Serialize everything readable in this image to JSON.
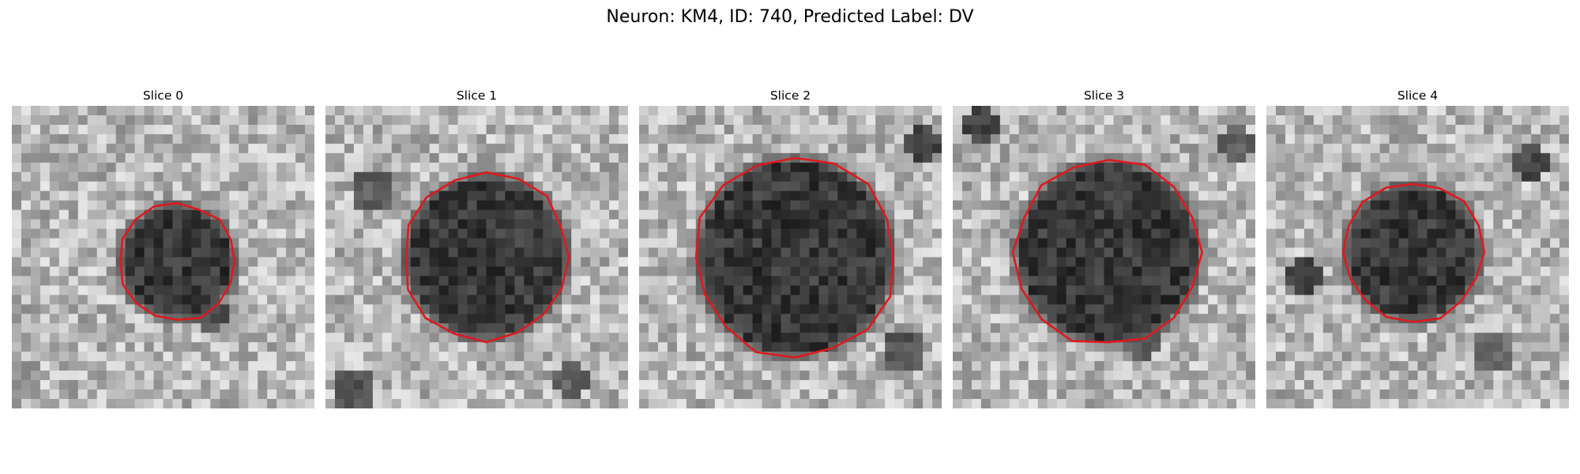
{
  "figure": {
    "title": "Neuron: KM4, ID: 740, Predicted Label: DV"
  },
  "colors": {
    "contour": "#e0191c",
    "background": "#ffffff"
  },
  "panels": [
    {
      "title": "Slice 0"
    },
    {
      "title": "Slice 1"
    },
    {
      "title": "Slice 2"
    },
    {
      "title": "Slice 3"
    },
    {
      "title": "Slice 4"
    }
  ]
}
